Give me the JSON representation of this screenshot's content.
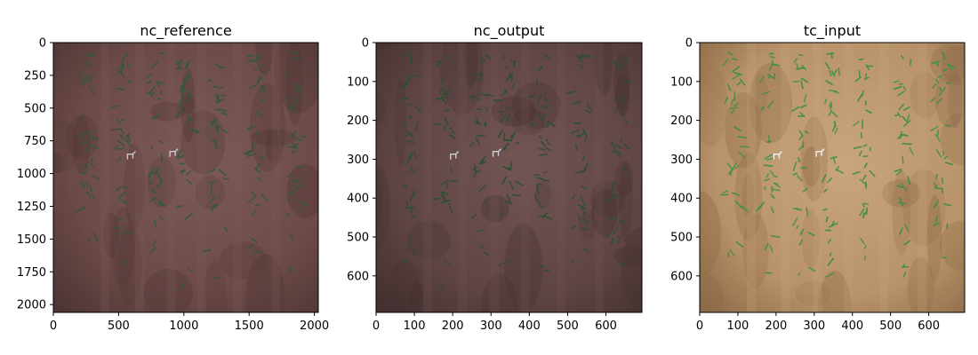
{
  "chart_data": [
    {
      "type": "image",
      "title": "nc_reference",
      "xlabel": "",
      "ylabel": "",
      "x_ticks": [
        0,
        500,
        1000,
        1500,
        2000
      ],
      "y_ticks": [
        0,
        250,
        500,
        750,
        1000,
        1250,
        1500,
        1750,
        2000
      ],
      "xlim": [
        0,
        2030
      ],
      "ylim": [
        2060,
        0
      ],
      "palette": {
        "soil": "#6b4a48",
        "soil_dark": "#4e3534",
        "soil_light": "#7c5a57",
        "plant": "#2f5a35",
        "marker": "#c9c9d2"
      }
    },
    {
      "type": "image",
      "title": "nc_output",
      "xlabel": "",
      "ylabel": "",
      "x_ticks": [
        0,
        100,
        200,
        300,
        400,
        500,
        600
      ],
      "y_ticks": [
        0,
        100,
        200,
        300,
        400,
        500,
        600
      ],
      "xlim": [
        0,
        694
      ],
      "ylim": [
        694,
        0
      ],
      "palette": {
        "soil": "#5f4444",
        "soil_dark": "#433030",
        "soil_light": "#725554",
        "plant": "#2a4f30",
        "marker": "#d0d0d8"
      }
    },
    {
      "type": "image",
      "title": "tc_input",
      "xlabel": "",
      "ylabel": "",
      "x_ticks": [
        0,
        100,
        200,
        300,
        400,
        500,
        600
      ],
      "y_ticks": [
        0,
        100,
        200,
        300,
        400,
        500,
        600
      ],
      "xlim": [
        0,
        694
      ],
      "ylim": [
        694,
        0
      ],
      "palette": {
        "soil": "#b8936a",
        "soil_dark": "#8d6a48",
        "soil_light": "#c9a57b",
        "plant": "#3d8f45",
        "marker": "#f2f2f2"
      }
    }
  ]
}
